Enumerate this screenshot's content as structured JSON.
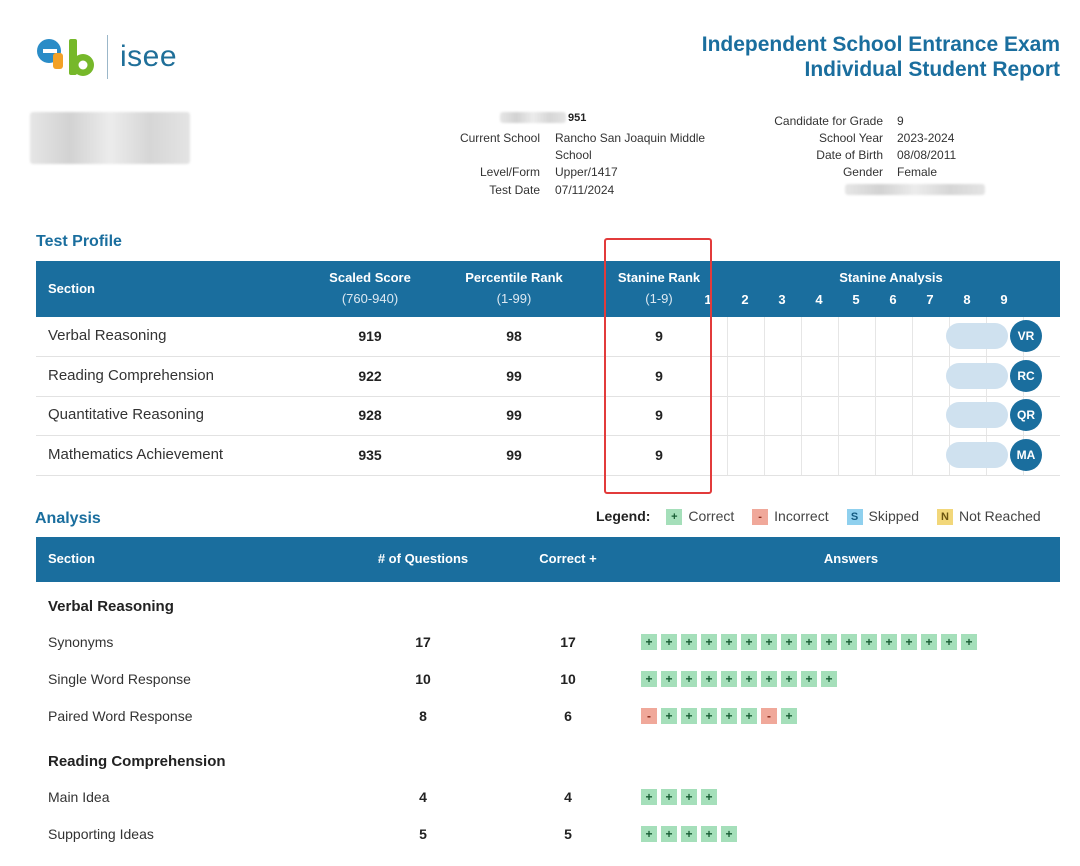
{
  "header": {
    "logo_text": "isee",
    "title_line1": "Independent School Entrance Exam",
    "title_line2": "Individual Student Report"
  },
  "student_info": {
    "id_partial": "951",
    "current_school_label": "Current School",
    "current_school_value_1": "Rancho San Joaquin Middle",
    "current_school_value_2": "School",
    "level_form_label": "Level/Form",
    "level_form_value": "Upper/1417",
    "test_date_label": "Test Date",
    "test_date_value": "07/11/2024",
    "grade_label": "Candidate for Grade",
    "grade_value": "9",
    "school_year_label": "School Year",
    "school_year_value": "2023-2024",
    "dob_label": "Date of Birth",
    "dob_value": "08/08/2011",
    "gender_label": "Gender",
    "gender_value": "Female"
  },
  "test_profile": {
    "heading": "Test Profile",
    "columns": {
      "section": "Section",
      "scaled": "Scaled Score",
      "scaled_range": "(760-940)",
      "percentile": "Percentile Rank",
      "percentile_range": "(1-99)",
      "stanine": "Stanine Rank",
      "stanine_range": "(1-9)",
      "analysis": "Stanine Analysis",
      "stanine_numbers": [
        "1",
        "2",
        "3",
        "4",
        "5",
        "6",
        "7",
        "8",
        "9"
      ]
    },
    "rows": [
      {
        "name": "Verbal Reasoning",
        "scaled": "919",
        "percentile": "98",
        "stanine": "9",
        "badge": "VR"
      },
      {
        "name": "Reading Comprehension",
        "scaled": "922",
        "percentile": "99",
        "stanine": "9",
        "badge": "RC"
      },
      {
        "name": "Quantitative Reasoning",
        "scaled": "928",
        "percentile": "99",
        "stanine": "9",
        "badge": "QR"
      },
      {
        "name": "Mathematics Achievement",
        "scaled": "935",
        "percentile": "99",
        "stanine": "9",
        "badge": "MA"
      }
    ]
  },
  "legend": {
    "label": "Legend:",
    "correct_symbol": "+",
    "correct": "Correct",
    "incorrect_symbol": "-",
    "incorrect": "Incorrect",
    "skipped_symbol": "S",
    "skipped": "Skipped",
    "not_reached_symbol": "N",
    "not_reached": "Not Reached"
  },
  "analysis": {
    "heading": "Analysis",
    "columns": {
      "section": "Section",
      "questions": "# of Questions",
      "correct": "Correct +",
      "answers": "Answers"
    },
    "groups": [
      {
        "name": "Verbal Reasoning",
        "rows": [
          {
            "name": "Synonyms",
            "questions": "17",
            "correct": "17",
            "answers": "+++++++++++++++++"
          },
          {
            "name": "Single Word Response",
            "questions": "10",
            "correct": "10",
            "answers": "++++++++++"
          },
          {
            "name": "Paired Word Response",
            "questions": "8",
            "correct": "6",
            "answers": "-+++++-+"
          }
        ]
      },
      {
        "name": "Reading Comprehension",
        "rows": [
          {
            "name": "Main Idea",
            "questions": "4",
            "correct": "4",
            "answers": "++++"
          },
          {
            "name": "Supporting Ideas",
            "questions": "5",
            "correct": "5",
            "answers": "+++++"
          }
        ]
      }
    ]
  },
  "colors": {
    "brand": "#1a6e9e",
    "correct": "#a5dfba",
    "incorrect": "#f0a89a",
    "skipped": "#8fd0ee",
    "not_reached": "#f2d77a",
    "highlight": "#e23b3b"
  }
}
